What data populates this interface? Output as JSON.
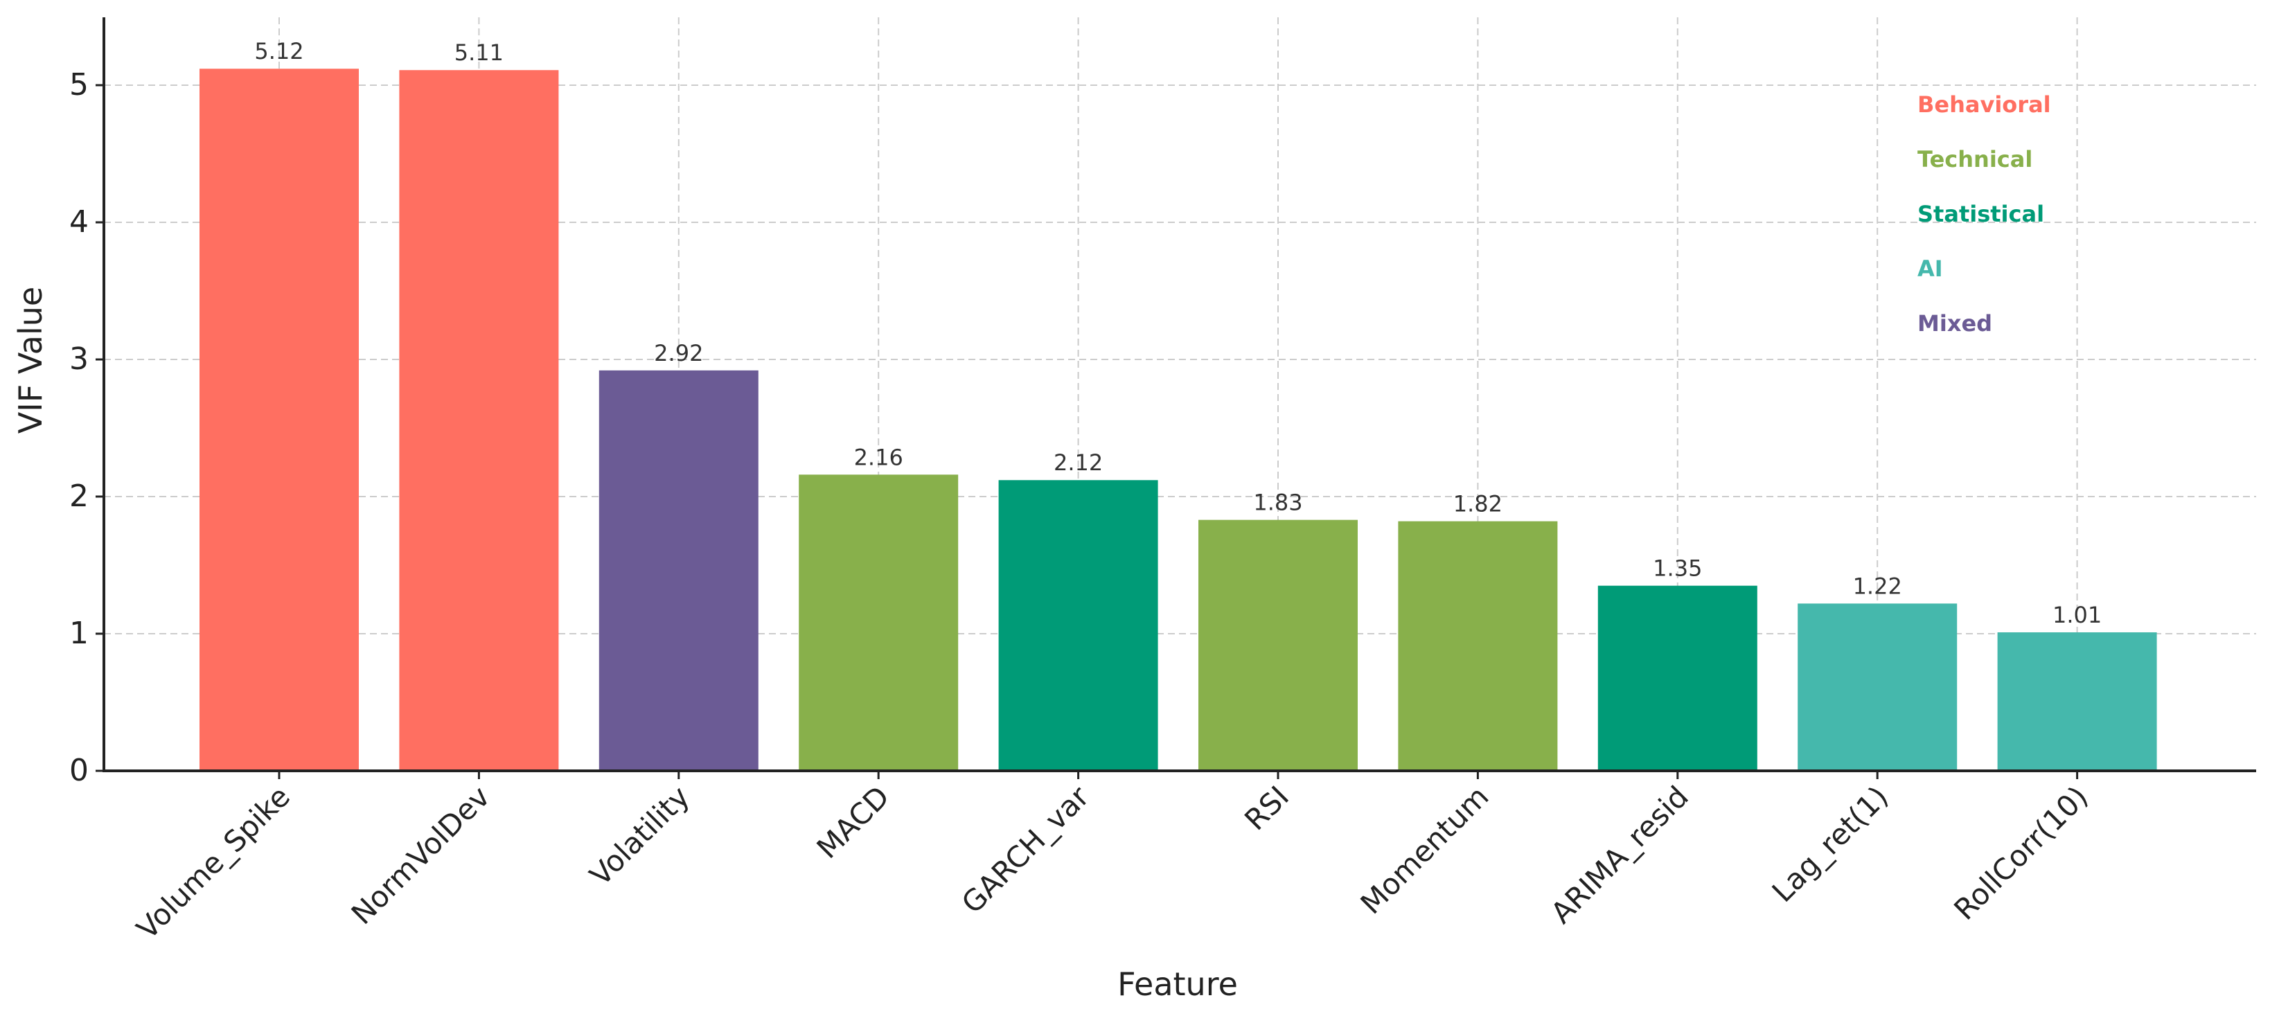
{
  "chart_data": {
    "type": "bar",
    "title": "",
    "xlabel": "Feature",
    "ylabel": "VIF Value",
    "ylim": [
      0,
      5.5
    ],
    "yticks": [
      0,
      1,
      2,
      3,
      4,
      5
    ],
    "grid": true,
    "legend_position": "upper right (text-only, colored labels)",
    "categories": [
      "Volume_Spike",
      "NormVolDev",
      "Volatility",
      "MACD",
      "GARCH_var",
      "RSI",
      "Momentum",
      "ARIMA_resid",
      "Lag_ret(1)",
      "RollCorr(10)"
    ],
    "values": [
      5.12,
      5.11,
      2.92,
      2.16,
      2.12,
      1.83,
      1.82,
      1.35,
      1.22,
      1.01
    ],
    "value_labels": [
      "5.12",
      "5.11",
      "2.92",
      "2.16",
      "2.12",
      "1.83",
      "1.82",
      "1.35",
      "1.22",
      "1.01"
    ],
    "groups": [
      "Behavioral",
      "Behavioral",
      "Mixed",
      "Technical",
      "Statistical",
      "Technical",
      "Technical",
      "Statistical",
      "AI",
      "AI"
    ],
    "legend": [
      {
        "label": "Behavioral",
        "color": "#ff6f61"
      },
      {
        "label": "Technical",
        "color": "#88b04b"
      },
      {
        "label": "Statistical",
        "color": "#009b77"
      },
      {
        "label": "AI",
        "color": "#45b8ac"
      },
      {
        "label": "Mixed",
        "color": "#6b5b95"
      }
    ]
  }
}
